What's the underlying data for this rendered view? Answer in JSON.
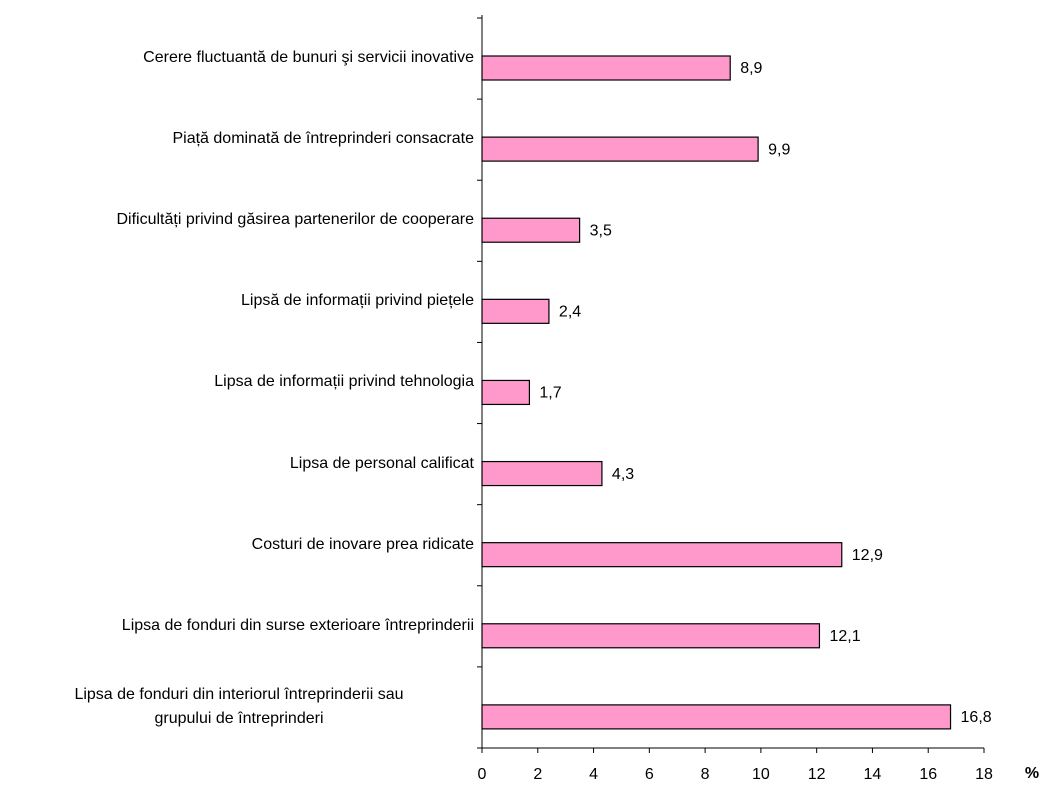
{
  "chart_data": {
    "type": "bar",
    "orientation": "horizontal",
    "categories": [
      "Cerere fluctuantă de bunuri şi servicii inovative",
      "Piață dominată de întreprinderi consacrate",
      "Dificultăți privind găsirea partenerilor de cooperare",
      "Lipsă de informații privind piețele",
      "Lipsa de informații privind tehnologia",
      "Lipsa de personal calificat",
      "Costuri de inovare prea ridicate",
      "Lipsa de fonduri din surse exterioare întreprinderii",
      "Lipsa de fonduri din interiorul întreprinderii sau\ngrupului de întreprinderi"
    ],
    "values": [
      8.9,
      9.9,
      3.5,
      2.4,
      1.7,
      4.3,
      12.9,
      12.1,
      16.8
    ],
    "value_labels": [
      "8,9",
      "9,9",
      "3,5",
      "2,4",
      "1,7",
      "4,3",
      "12,9",
      "12,1",
      "16,8"
    ],
    "color": "#ff99cc",
    "xlim": [
      0,
      18
    ],
    "xticks": [
      0,
      2,
      4,
      6,
      8,
      10,
      12,
      14,
      16,
      18
    ],
    "xlabel": "%"
  }
}
